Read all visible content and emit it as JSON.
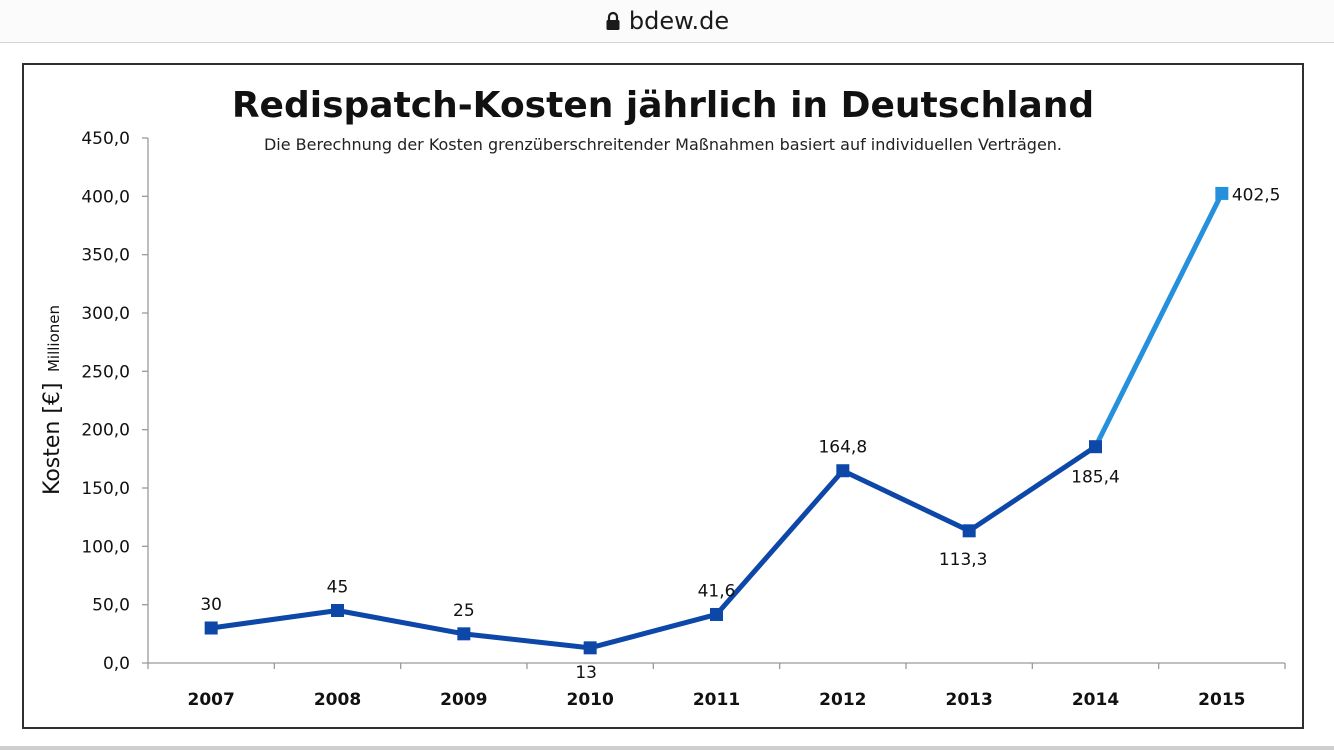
{
  "browser": {
    "url": "bdew.de",
    "lock_icon": "lock-icon"
  },
  "chart_data": {
    "type": "line",
    "title": "Redispatch-Kosten jährlich  in Deutschland",
    "subtitle": "Die Berechnung der Kosten grenzüberschreitender  Maßnahmen basiert auf individuellen Verträgen.",
    "ylabel": "Kosten [€]",
    "ylabel_unit": "Millionen",
    "xlabel": "",
    "categories": [
      "2007",
      "2008",
      "2009",
      "2010",
      "2011",
      "2012",
      "2013",
      "2014",
      "2015"
    ],
    "values": [
      30,
      45,
      25,
      13,
      41.6,
      164.8,
      113.3,
      185.4,
      402.5
    ],
    "data_labels": [
      "30",
      "45",
      "25",
      "13",
      "41,6",
      "164,8",
      "113,3",
      "185,4",
      "402,5"
    ],
    "ylim": [
      0,
      450
    ],
    "yticks": [
      "0,0",
      "50,0",
      "100,0",
      "150,0",
      "200,0",
      "250,0",
      "300,0",
      "350,0",
      "400,0",
      "450,0"
    ],
    "grid": false,
    "colors": {
      "line_dark": "#0d47a8",
      "line_light": "#2590dc",
      "axis": "#9a9a9a"
    }
  }
}
